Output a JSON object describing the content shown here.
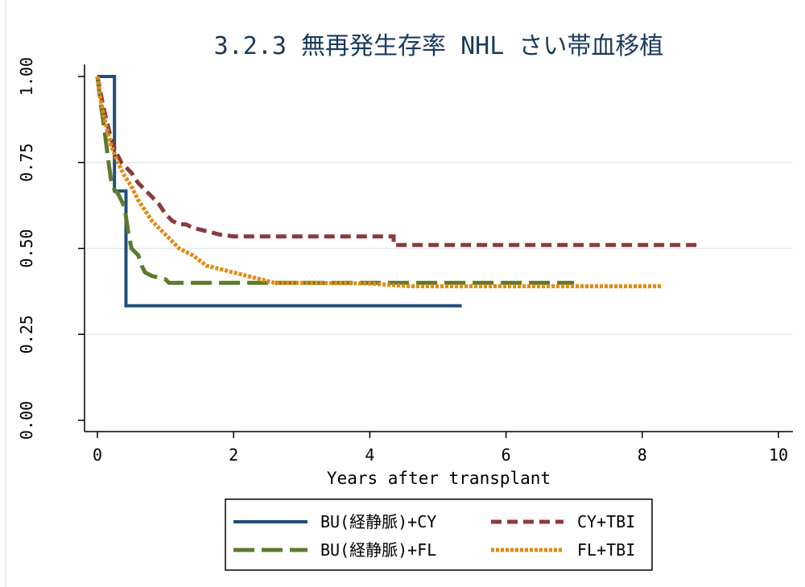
{
  "chart_data": {
    "type": "line",
    "title": "3.2.3 無再発生存率 NHL さい帯血移植",
    "xlabel": "Years after transplant",
    "ylabel": "",
    "xlim": [
      0,
      10
    ],
    "ylim": [
      0,
      1
    ],
    "x_ticks": [
      "0",
      "2",
      "4",
      "6",
      "8",
      "10"
    ],
    "y_ticks": [
      "0.00",
      "0.25",
      "0.50",
      "0.75",
      "1.00"
    ],
    "grid": true,
    "legend_position": "bottom",
    "series": [
      {
        "name": "BU(経静脈)+CY",
        "color": "#1f4e79",
        "style": "solid",
        "points": [
          [
            0,
            1.0
          ],
          [
            0.25,
            1.0
          ],
          [
            0.25,
            0.667
          ],
          [
            0.42,
            0.667
          ],
          [
            0.42,
            0.333
          ],
          [
            5.35,
            0.333
          ]
        ]
      },
      {
        "name": "CY+TBI",
        "color": "#8b3a3a",
        "style": "dash",
        "points": [
          [
            0,
            1.0
          ],
          [
            0.05,
            0.95
          ],
          [
            0.1,
            0.9
          ],
          [
            0.15,
            0.86
          ],
          [
            0.2,
            0.82
          ],
          [
            0.25,
            0.79
          ],
          [
            0.3,
            0.77
          ],
          [
            0.35,
            0.75
          ],
          [
            0.4,
            0.74
          ],
          [
            0.5,
            0.72
          ],
          [
            0.6,
            0.69
          ],
          [
            0.7,
            0.67
          ],
          [
            0.8,
            0.65
          ],
          [
            0.9,
            0.63
          ],
          [
            1.0,
            0.6
          ],
          [
            1.1,
            0.58
          ],
          [
            1.2,
            0.57
          ],
          [
            1.3,
            0.57
          ],
          [
            1.4,
            0.56
          ],
          [
            1.6,
            0.55
          ],
          [
            1.8,
            0.54
          ],
          [
            2.0,
            0.535
          ],
          [
            4.35,
            0.535
          ],
          [
            4.35,
            0.51
          ],
          [
            8.8,
            0.51
          ]
        ]
      },
      {
        "name": "BU(経静脈)+FL",
        "color": "#5b7b2c",
        "style": "longdash",
        "points": [
          [
            0,
            1.0
          ],
          [
            0.05,
            0.92
          ],
          [
            0.1,
            0.85
          ],
          [
            0.15,
            0.77
          ],
          [
            0.2,
            0.7
          ],
          [
            0.25,
            0.67
          ],
          [
            0.3,
            0.66
          ],
          [
            0.35,
            0.64
          ],
          [
            0.4,
            0.62
          ],
          [
            0.45,
            0.55
          ],
          [
            0.5,
            0.5
          ],
          [
            0.6,
            0.48
          ],
          [
            0.65,
            0.45
          ],
          [
            0.7,
            0.43
          ],
          [
            0.8,
            0.42
          ],
          [
            1.0,
            0.41
          ],
          [
            1.05,
            0.4
          ],
          [
            7.0,
            0.4
          ]
        ]
      },
      {
        "name": "FL+TBI",
        "color": "#e38a0f",
        "style": "dot",
        "points": [
          [
            0,
            1.0
          ],
          [
            0.05,
            0.93
          ],
          [
            0.1,
            0.88
          ],
          [
            0.15,
            0.84
          ],
          [
            0.2,
            0.8
          ],
          [
            0.3,
            0.75
          ],
          [
            0.4,
            0.71
          ],
          [
            0.5,
            0.68
          ],
          [
            0.6,
            0.64
          ],
          [
            0.7,
            0.61
          ],
          [
            0.8,
            0.58
          ],
          [
            0.9,
            0.56
          ],
          [
            1.0,
            0.54
          ],
          [
            1.2,
            0.5
          ],
          [
            1.4,
            0.48
          ],
          [
            1.6,
            0.45
          ],
          [
            1.8,
            0.44
          ],
          [
            2.0,
            0.43
          ],
          [
            2.2,
            0.42
          ],
          [
            2.4,
            0.41
          ],
          [
            2.6,
            0.4
          ],
          [
            3.0,
            0.4
          ],
          [
            4.0,
            0.398
          ],
          [
            4.6,
            0.39
          ],
          [
            8.3,
            0.39
          ]
        ]
      }
    ]
  }
}
